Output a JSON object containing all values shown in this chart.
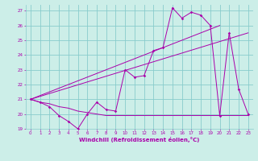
{
  "xlabel": "Windchill (Refroidissement éolien,°C)",
  "bg_color": "#cceee8",
  "grid_color": "#88cccc",
  "line_color": "#aa00aa",
  "xlim": [
    -0.5,
    23.5
  ],
  "ylim": [
    19,
    27.4
  ],
  "xticks": [
    0,
    1,
    2,
    3,
    4,
    5,
    6,
    7,
    8,
    9,
    10,
    11,
    12,
    13,
    14,
    15,
    16,
    17,
    18,
    19,
    20,
    21,
    22,
    23
  ],
  "yticks": [
    19,
    20,
    21,
    22,
    23,
    24,
    25,
    26,
    27
  ],
  "line1_x": [
    0,
    1,
    2,
    3,
    4,
    5,
    6,
    7,
    8,
    9,
    10,
    11,
    12,
    13,
    14,
    15,
    16,
    17,
    18,
    19,
    20,
    21,
    22,
    23
  ],
  "line1_y": [
    21.0,
    20.8,
    20.5,
    19.9,
    19.5,
    19.0,
    20.0,
    20.8,
    20.3,
    20.2,
    23.0,
    22.5,
    22.6,
    24.3,
    24.5,
    27.2,
    26.5,
    26.9,
    26.7,
    26.0,
    19.9,
    25.5,
    21.7,
    20.0
  ],
  "line2_x": [
    0,
    1,
    2,
    3,
    4,
    5,
    6,
    7,
    8,
    9,
    10,
    11,
    12,
    13,
    14,
    15,
    16,
    17,
    18,
    19,
    20,
    23
  ],
  "line2_y": [
    21.0,
    20.8,
    20.7,
    20.5,
    20.4,
    20.2,
    20.1,
    20.0,
    19.9,
    19.9,
    19.9,
    19.9,
    19.9,
    19.9,
    19.9,
    19.9,
    19.9,
    19.9,
    19.9,
    19.9,
    19.9,
    19.9
  ],
  "line3_x": [
    0,
    23
  ],
  "line3_y": [
    21.0,
    25.5
  ],
  "line4_x": [
    0,
    20
  ],
  "line4_y": [
    21.0,
    26.0
  ]
}
